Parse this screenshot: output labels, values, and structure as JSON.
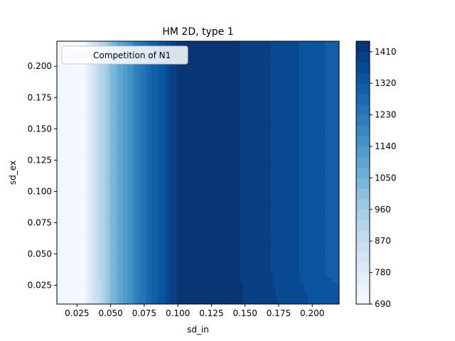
{
  "chart_data": {
    "type": "heatmap",
    "subtype": "filled-contour",
    "title": "HM 2D, type 1",
    "xlabel": "sd_in",
    "ylabel": "sd_ex",
    "xlim": [
      0.01,
      0.22
    ],
    "ylim": [
      0.01,
      0.22
    ],
    "xticks": [
      0.025,
      0.05,
      0.075,
      0.1,
      0.125,
      0.15,
      0.175,
      0.2
    ],
    "xtick_labels": [
      "0.025",
      "0.050",
      "0.075",
      "0.100",
      "0.125",
      "0.150",
      "0.175",
      "0.200"
    ],
    "yticks": [
      0.025,
      0.05,
      0.075,
      0.1,
      0.125,
      0.15,
      0.175,
      0.2
    ],
    "ytick_labels": [
      "0.025",
      "0.050",
      "0.075",
      "0.100",
      "0.125",
      "0.150",
      "0.175",
      "0.200"
    ],
    "legend": {
      "label": "Competition of N1",
      "placement": "upper-left"
    },
    "colormap": "Blues",
    "colorbar": {
      "min": 690,
      "max": 1440,
      "ticks": [
        690,
        780,
        870,
        960,
        1050,
        1140,
        1230,
        1320,
        1410
      ],
      "tick_labels": [
        "690",
        "780",
        "870",
        "960",
        "1050",
        "1140",
        "1230",
        "1320",
        "1410"
      ]
    },
    "x": [
      0.01,
      0.02,
      0.03,
      0.04,
      0.05,
      0.06,
      0.07,
      0.08,
      0.09,
      0.1,
      0.11,
      0.12,
      0.13,
      0.14,
      0.15,
      0.16,
      0.17,
      0.18,
      0.19,
      0.2,
      0.21,
      0.22
    ],
    "y": [
      0.01,
      0.03,
      0.05,
      0.075,
      0.1,
      0.125,
      0.15,
      0.175,
      0.2,
      0.22
    ],
    "z_profile": [
      700,
      702,
      710,
      870,
      1010,
      1120,
      1215,
      1290,
      1350,
      1420,
      1430,
      1432,
      1430,
      1422,
      1405,
      1390,
      1380,
      1358,
      1350,
      1338,
      1320,
      1315
    ],
    "grid": false
  },
  "colors": {
    "low": "#f7fbff",
    "high": "#08306b",
    "axes": "#000000"
  }
}
